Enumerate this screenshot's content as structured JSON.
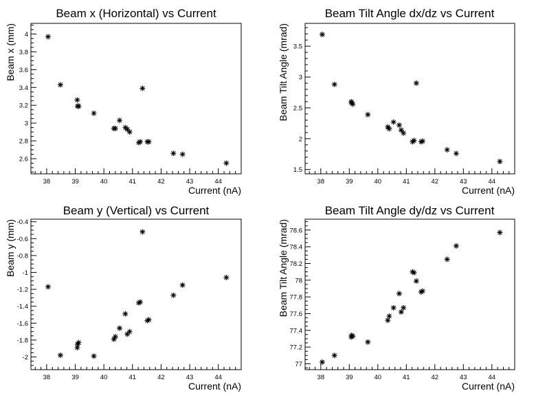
{
  "chart_data": [
    {
      "type": "scatter",
      "title": "Beam x (Horizontal) vs Current",
      "xlabel": "Current (nA)",
      "ylabel": "Beam x (mm)",
      "xlim": [
        37.45,
        44.8
      ],
      "ylim": [
        2.43,
        4.12
      ],
      "xticks": [
        38,
        39,
        40,
        41,
        42,
        43,
        44
      ],
      "yticks": [
        2.6,
        2.8,
        3,
        3.2,
        3.4,
        3.6,
        3.8,
        4
      ],
      "yticklabels": [
        "2.6",
        "2.8",
        "3",
        "3.2",
        "3.4",
        "3.6",
        "3.8",
        "4"
      ],
      "grid": false,
      "marker": "star",
      "points": [
        [
          38.05,
          3.97
        ],
        [
          38.48,
          3.43
        ],
        [
          39.07,
          3.26
        ],
        [
          39.08,
          3.19
        ],
        [
          39.12,
          3.19
        ],
        [
          39.65,
          3.11
        ],
        [
          40.35,
          2.94
        ],
        [
          40.4,
          2.94
        ],
        [
          40.55,
          3.03
        ],
        [
          40.75,
          2.95
        ],
        [
          40.82,
          2.93
        ],
        [
          40.9,
          2.9
        ],
        [
          41.22,
          2.78
        ],
        [
          41.27,
          2.79
        ],
        [
          41.35,
          3.39
        ],
        [
          41.52,
          2.79
        ],
        [
          41.57,
          2.79
        ],
        [
          42.43,
          2.66
        ],
        [
          42.75,
          2.65
        ],
        [
          44.28,
          2.55
        ]
      ]
    },
    {
      "type": "scatter",
      "title": "Beam Tilt Angle dx/dz vs Current",
      "xlabel": "Current (nA)",
      "ylabel": "Beam Tilt Angle (mrad)",
      "xlim": [
        37.45,
        44.8
      ],
      "ylim": [
        1.43,
        3.87
      ],
      "xticks": [
        38,
        39,
        40,
        41,
        42,
        43,
        44
      ],
      "yticks": [
        1.5,
        2,
        2.5,
        3,
        3.5
      ],
      "yticklabels": [
        "1.5",
        "2",
        "2.5",
        "3",
        "3.5"
      ],
      "grid": false,
      "marker": "star",
      "points": [
        [
          38.05,
          3.69
        ],
        [
          38.48,
          2.88
        ],
        [
          39.07,
          2.6
        ],
        [
          39.08,
          2.58
        ],
        [
          39.12,
          2.56
        ],
        [
          39.65,
          2.39
        ],
        [
          40.35,
          2.19
        ],
        [
          40.4,
          2.16
        ],
        [
          40.55,
          2.27
        ],
        [
          40.75,
          2.22
        ],
        [
          40.82,
          2.14
        ],
        [
          40.9,
          2.09
        ],
        [
          41.22,
          1.95
        ],
        [
          41.27,
          1.97
        ],
        [
          41.35,
          2.9
        ],
        [
          41.52,
          1.95
        ],
        [
          41.57,
          1.96
        ],
        [
          42.43,
          1.82
        ],
        [
          42.75,
          1.76
        ],
        [
          44.28,
          1.63
        ]
      ]
    },
    {
      "type": "scatter",
      "title": "Beam y (Vertical) vs Current",
      "xlabel": "Current (nA)",
      "ylabel": "Beam y (mm)",
      "xlim": [
        37.45,
        44.8
      ],
      "ylim": [
        -2.15,
        -0.37
      ],
      "xticks": [
        38,
        39,
        40,
        41,
        42,
        43,
        44
      ],
      "yticks": [
        -2,
        -1.8,
        -1.6,
        -1.4,
        -1.2,
        -1,
        -0.8,
        -0.6,
        -0.4
      ],
      "yticklabels": [
        "-2",
        "-1.8",
        "-1.6",
        "-1.4",
        "-1.2",
        "-1",
        "-0.8",
        "-0.6",
        "-0.4"
      ],
      "grid": false,
      "marker": "star",
      "points": [
        [
          38.05,
          -1.17
        ],
        [
          38.48,
          -1.98
        ],
        [
          39.07,
          -1.89
        ],
        [
          39.08,
          -1.85
        ],
        [
          39.12,
          -1.83
        ],
        [
          39.65,
          -1.99
        ],
        [
          40.35,
          -1.79
        ],
        [
          40.4,
          -1.76
        ],
        [
          40.55,
          -1.66
        ],
        [
          40.75,
          -1.49
        ],
        [
          40.82,
          -1.73
        ],
        [
          40.9,
          -1.7
        ],
        [
          41.22,
          -1.36
        ],
        [
          41.27,
          -1.35
        ],
        [
          41.35,
          -0.52
        ],
        [
          41.52,
          -1.57
        ],
        [
          41.57,
          -1.56
        ],
        [
          42.43,
          -1.27
        ],
        [
          42.75,
          -1.15
        ],
        [
          44.28,
          -1.06
        ]
      ]
    },
    {
      "type": "scatter",
      "title": "Beam Tilt Angle dy/dz vs Current",
      "xlabel": "Current (nA)",
      "ylabel": "Beam Tilt Angle (mrad)",
      "xlim": [
        37.45,
        44.8
      ],
      "ylim": [
        76.93,
        78.73
      ],
      "xticks": [
        38,
        39,
        40,
        41,
        42,
        43,
        44
      ],
      "yticks": [
        77,
        77.2,
        77.4,
        77.6,
        77.8,
        78,
        78.2,
        78.4,
        78.6
      ],
      "yticklabels": [
        "77",
        "77.2",
        "77.4",
        "77.6",
        "77.8",
        "78",
        "78.2",
        "78.4",
        "78.6"
      ],
      "grid": false,
      "marker": "star",
      "points": [
        [
          38.05,
          77.02
        ],
        [
          38.48,
          77.1
        ],
        [
          39.07,
          77.32
        ],
        [
          39.08,
          77.34
        ],
        [
          39.12,
          77.33
        ],
        [
          39.65,
          77.26
        ],
        [
          40.35,
          77.52
        ],
        [
          40.4,
          77.57
        ],
        [
          40.55,
          77.67
        ],
        [
          40.75,
          77.84
        ],
        [
          40.82,
          77.62
        ],
        [
          40.9,
          77.67
        ],
        [
          41.22,
          78.1
        ],
        [
          41.27,
          78.09
        ],
        [
          41.35,
          77.99
        ],
        [
          41.52,
          77.86
        ],
        [
          41.57,
          77.87
        ],
        [
          42.43,
          78.25
        ],
        [
          42.75,
          78.41
        ],
        [
          44.28,
          78.57
        ]
      ]
    }
  ]
}
